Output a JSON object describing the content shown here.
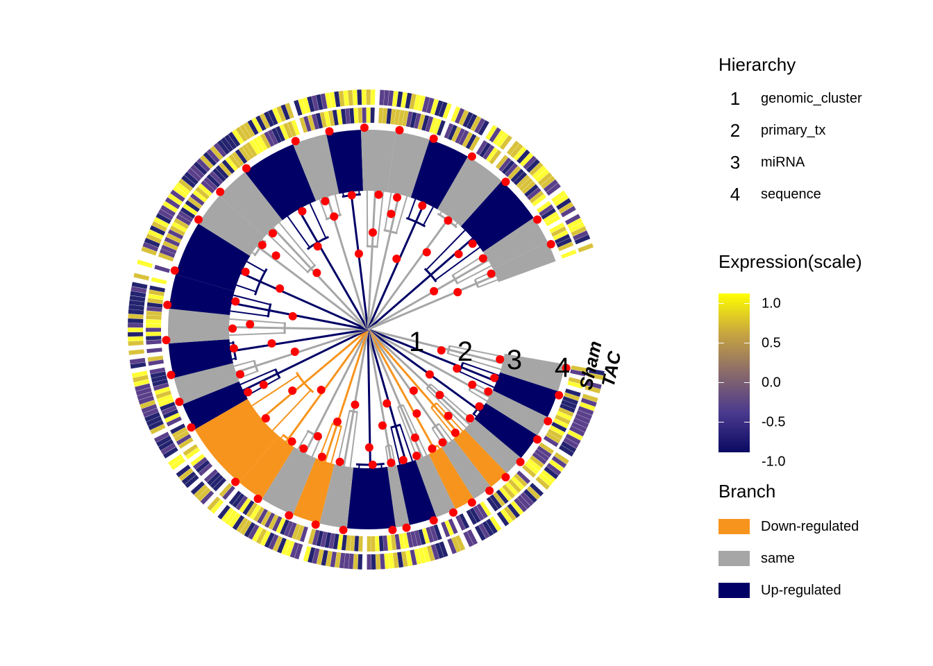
{
  "figure": {
    "ring_labels": [
      "1",
      "2",
      "3",
      "4"
    ],
    "track_labels": [
      "Sham",
      "TAC"
    ],
    "colors": {
      "down": "#f7941d",
      "same": "#a6a6a6",
      "up": "#000066",
      "node": "#ff0000",
      "expr_high": "#ffff00",
      "expr_low": "#0a0a63"
    }
  },
  "legend": {
    "hierarchy": {
      "title": "Hierarchy",
      "items": [
        {
          "num": "1",
          "label": "genomic_cluster"
        },
        {
          "num": "2",
          "label": "primary_tx"
        },
        {
          "num": "3",
          "label": "miRNA"
        },
        {
          "num": "4",
          "label": "sequence"
        }
      ]
    },
    "expression": {
      "title": "Expression(scale)",
      "ticks": [
        "1.0",
        "0.5",
        "0.0",
        "-0.5",
        "-1.0"
      ]
    },
    "branch": {
      "title": "Branch",
      "items": [
        {
          "label": "Down-regulated",
          "color": "#f7941d"
        },
        {
          "label": "same",
          "color": "#a6a6a6"
        },
        {
          "label": "Up-regulated",
          "color": "#000066"
        }
      ]
    }
  }
}
